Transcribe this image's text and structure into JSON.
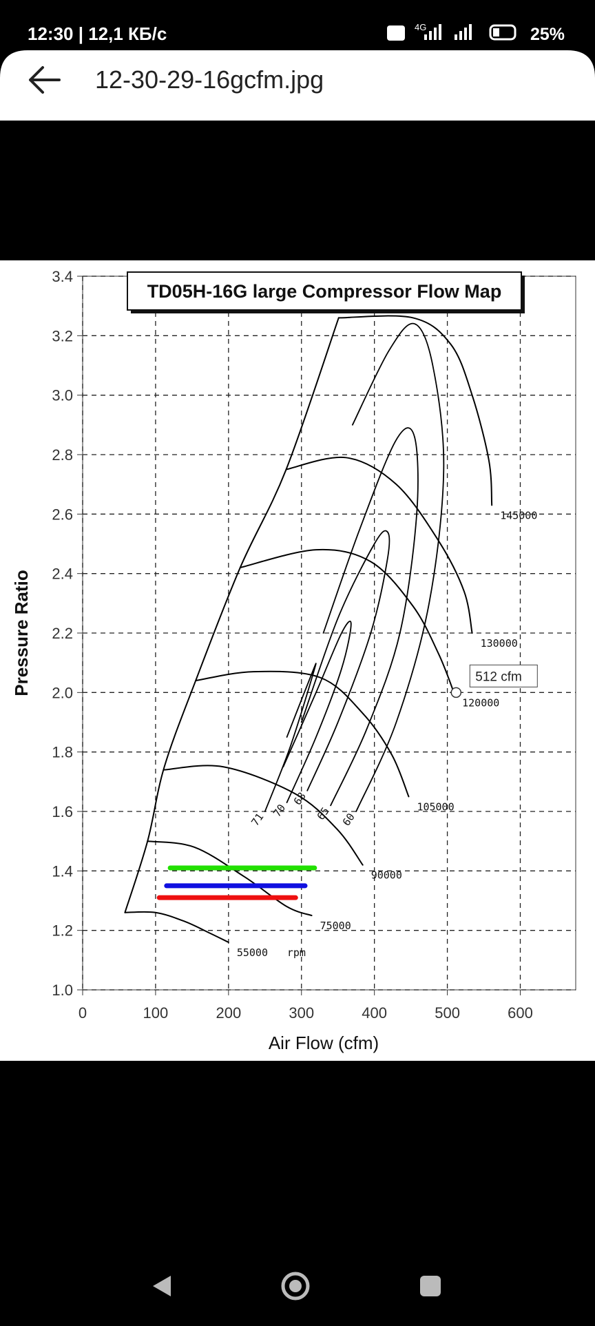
{
  "status_bar": {
    "time": "12:30 | 12,1 КБ/с",
    "network": "4G",
    "battery": "25%"
  },
  "header": {
    "filename": "12-30-29-16gcfm.jpg"
  },
  "chart_data": {
    "type": "line",
    "title": "TD05H-16G large Compressor Flow Map",
    "x_label": "Air Flow (cfm)",
    "y_label": "Pressure Ratio",
    "xlim": [
      0,
      676
    ],
    "ylim": [
      1.0,
      3.4
    ],
    "xticks": [
      0,
      100,
      200,
      300,
      400,
      500,
      600
    ],
    "yticks": [
      {
        "value": 1.0,
        "label": "1.0"
      },
      1.2,
      1.4,
      1.6,
      1.8,
      {
        "value": 2.0,
        "label": "2.0"
      },
      2.2,
      2.4,
      2.6,
      2.8,
      {
        "value": 3.0,
        "label": "3.0"
      },
      3.2,
      3.4
    ],
    "grid": true,
    "line_color": "#000000",
    "surge_line": {
      "x": [
        58,
        89,
        112,
        155,
        216,
        279,
        351
      ],
      "values": [
        1.26,
        1.5,
        1.75,
        2.04,
        2.42,
        2.75,
        3.26
      ]
    },
    "speed_lines": [
      {
        "name": "55000",
        "x": [
          58,
          100,
          140,
          175,
          200
        ],
        "values": [
          1.26,
          1.26,
          1.23,
          1.19,
          1.16
        ]
      },
      {
        "name": "75000",
        "x": [
          89,
          153,
          222,
          280,
          314
        ],
        "values": [
          1.5,
          1.48,
          1.38,
          1.28,
          1.25
        ]
      },
      {
        "name": "90000",
        "x": [
          112,
          193,
          291,
          349,
          384
        ],
        "values": [
          1.74,
          1.75,
          1.66,
          1.54,
          1.42
        ]
      },
      {
        "name": "105000",
        "x": [
          155,
          234,
          326,
          384,
          424,
          447
        ],
        "values": [
          2.04,
          2.07,
          2.05,
          1.93,
          1.79,
          1.65
        ]
      },
      {
        "name": "120000",
        "x": [
          216,
          320,
          395,
          453,
          488,
          509
        ],
        "values": [
          2.42,
          2.48,
          2.44,
          2.29,
          2.13,
          2.0
        ]
      },
      {
        "name": "130000",
        "x": [
          279,
          361,
          430,
          488,
          523,
          534
        ],
        "values": [
          2.75,
          2.79,
          2.7,
          2.51,
          2.34,
          2.2
        ]
      },
      {
        "name": "145000",
        "x": [
          351,
          453,
          505,
          534,
          557,
          561
        ],
        "values": [
          3.26,
          3.26,
          3.17,
          3.0,
          2.78,
          2.63
        ]
      }
    ],
    "speed_unit": "rpm",
    "efficiency_islands": [
      {
        "name": "71",
        "x": [
          250,
          285,
          318,
          312,
          280
        ],
        "values": [
          1.6,
          1.82,
          2.08,
          2.05,
          1.85
        ]
      },
      {
        "name": "70",
        "x": [
          280,
          320,
          355,
          368,
          355,
          320,
          275
        ],
        "values": [
          1.63,
          1.85,
          2.08,
          2.23,
          2.2,
          2.0,
          1.75
        ]
      },
      {
        "name": "68",
        "x": [
          308,
          350,
          395,
          418,
          418,
          400,
          350,
          300
        ],
        "values": [
          1.67,
          1.9,
          2.2,
          2.45,
          2.54,
          2.5,
          2.25,
          1.9
        ]
      },
      {
        "name": "65",
        "x": [
          340,
          390,
          435,
          458,
          455,
          430,
          380,
          330
        ],
        "values": [
          1.62,
          1.88,
          2.2,
          2.6,
          2.86,
          2.85,
          2.55,
          2.2
        ]
      },
      {
        "name": "60",
        "x": [
          375,
          430,
          475,
          495,
          480,
          455,
          420,
          370
        ],
        "values": [
          1.6,
          1.9,
          2.3,
          2.75,
          3.1,
          3.24,
          3.15,
          2.9
        ]
      }
    ],
    "operating_lines": [
      {
        "color": "#22e000",
        "x": [
          120,
          318
        ],
        "values": [
          1.41,
          1.41
        ]
      },
      {
        "color": "#1010e0",
        "x": [
          115,
          305
        ],
        "values": [
          1.35,
          1.35
        ]
      },
      {
        "color": "#ee1010",
        "x": [
          105,
          292
        ],
        "values": [
          1.31,
          1.31
        ]
      }
    ],
    "points": [
      {
        "x": 512,
        "y": 2.0,
        "label": "512 cfm"
      }
    ]
  }
}
